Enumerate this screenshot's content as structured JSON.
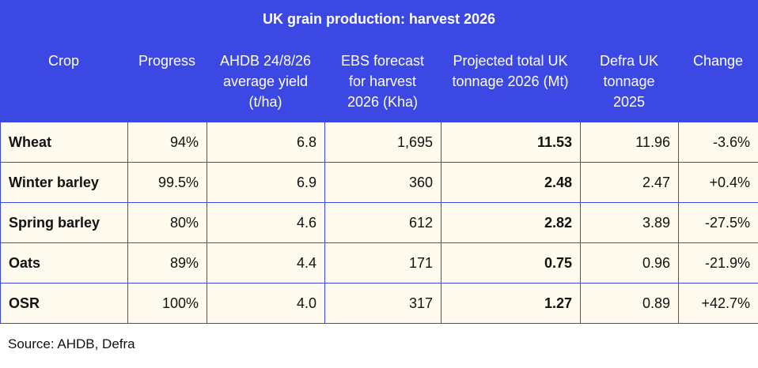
{
  "title": "UK grain production: harvest 2026",
  "columns": [
    "Crop",
    "Progress",
    "AHDB 24/8/26\naverage yield\n(t/ha)",
    "EBS forecast\nfor harvest\n2026 (Kha)",
    "Projected total UK\ntonnage 2026 (Mt)",
    "Defra UK\ntonnage\n2025",
    "Change"
  ],
  "rows": [
    {
      "crop": "Wheat",
      "progress": "94%",
      "yield": "6.8",
      "ebs": "1,695",
      "projected": "11.53",
      "defra": "11.96",
      "change": "-3.6%"
    },
    {
      "crop": "Winter barley",
      "progress": "99.5%",
      "yield": "6.9",
      "ebs": "360",
      "projected": "2.48",
      "defra": "2.47",
      "change": "+0.4%"
    },
    {
      "crop": "Spring barley",
      "progress": "80%",
      "yield": "4.6",
      "ebs": "612",
      "projected": "2.82",
      "defra": "3.89",
      "change": "-27.5%"
    },
    {
      "crop": "Oats",
      "progress": "89%",
      "yield": "4.4",
      "ebs": "171",
      "projected": "0.75",
      "defra": "0.96",
      "change": "-21.9%"
    },
    {
      "crop": "OSR",
      "progress": "100%",
      "yield": "4.0",
      "ebs": "317",
      "projected": "1.27",
      "defra": "0.89",
      "change": "+42.7%"
    }
  ],
  "source": "Source: AHDB, Defra",
  "colors": {
    "header_bg": "#3c48e4",
    "cell_bg": "#fefbee",
    "header_text": "#ffffff"
  }
}
